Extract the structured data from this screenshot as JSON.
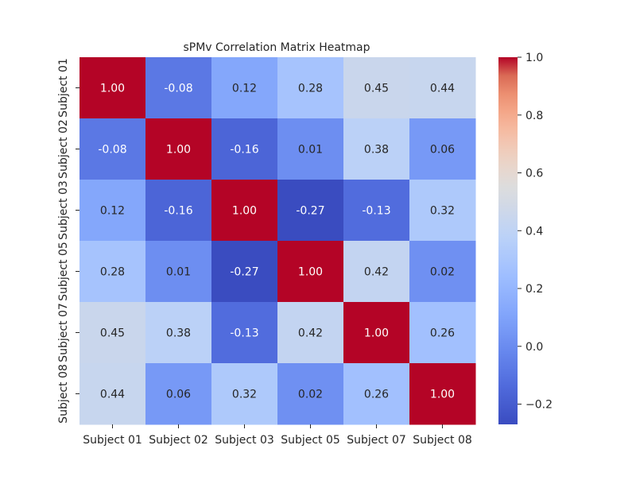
{
  "chart_data": {
    "type": "heatmap",
    "title": "sPMv Correlation Matrix Heatmap",
    "xlabel": "",
    "ylabel": "",
    "x_categories": [
      "Subject 01",
      "Subject 02",
      "Subject 03",
      "Subject 05",
      "Subject 07",
      "Subject 08"
    ],
    "y_categories": [
      "Subject 01",
      "Subject 02",
      "Subject 03",
      "Subject 05",
      "Subject 07",
      "Subject 08"
    ],
    "values": [
      [
        1.0,
        -0.08,
        0.12,
        0.28,
        0.45,
        0.44
      ],
      [
        -0.08,
        1.0,
        -0.16,
        0.01,
        0.38,
        0.06
      ],
      [
        0.12,
        -0.16,
        1.0,
        -0.27,
        -0.13,
        0.32
      ],
      [
        0.28,
        0.01,
        -0.27,
        1.0,
        0.42,
        0.02
      ],
      [
        0.45,
        0.38,
        -0.13,
        0.42,
        1.0,
        0.26
      ],
      [
        0.44,
        0.06,
        0.32,
        0.02,
        0.26,
        1.0
      ]
    ],
    "value_format": "2 decimals",
    "colormap": "coolwarm",
    "vmin": -0.27,
    "vmax": 1.0,
    "colorbar": {
      "position": "right",
      "ticks": [
        -0.2,
        0.0,
        0.2,
        0.4,
        0.6,
        0.8,
        1.0
      ],
      "tick_labels": [
        "−0.2",
        "0.0",
        "0.2",
        "0.4",
        "0.6",
        "0.8",
        "1.0"
      ]
    },
    "grid": false,
    "colors": {
      "low": "#3b4cc0",
      "mid": "#dddddd",
      "high": "#b40426",
      "text_dark": "#262626",
      "text_light": "#ffffff"
    }
  }
}
